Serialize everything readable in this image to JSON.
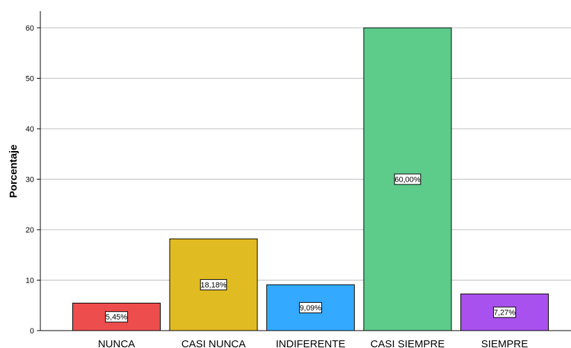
{
  "chart_data": {
    "type": "bar",
    "title": "",
    "xlabel": "",
    "ylabel": "Porcentaje",
    "ylim": [
      0,
      60
    ],
    "yticks": [
      "0",
      "10",
      "20",
      "30",
      "40",
      "50",
      "60"
    ],
    "grid": true,
    "categories": [
      "NUNCA",
      "CASI NUNCA",
      "INDIFERENTE",
      "CASI SIEMPRE",
      "SIEMPRE"
    ],
    "values": [
      5.45,
      18.18,
      9.09,
      60.0,
      7.27
    ],
    "data_labels": [
      "5,45%",
      "18,18%",
      "9,09%",
      "60,00%",
      "7,27%"
    ],
    "colors": [
      "#ee4d4d",
      "#e1bb22",
      "#33aaff",
      "#5dcb8a",
      "#a951ee"
    ]
  }
}
